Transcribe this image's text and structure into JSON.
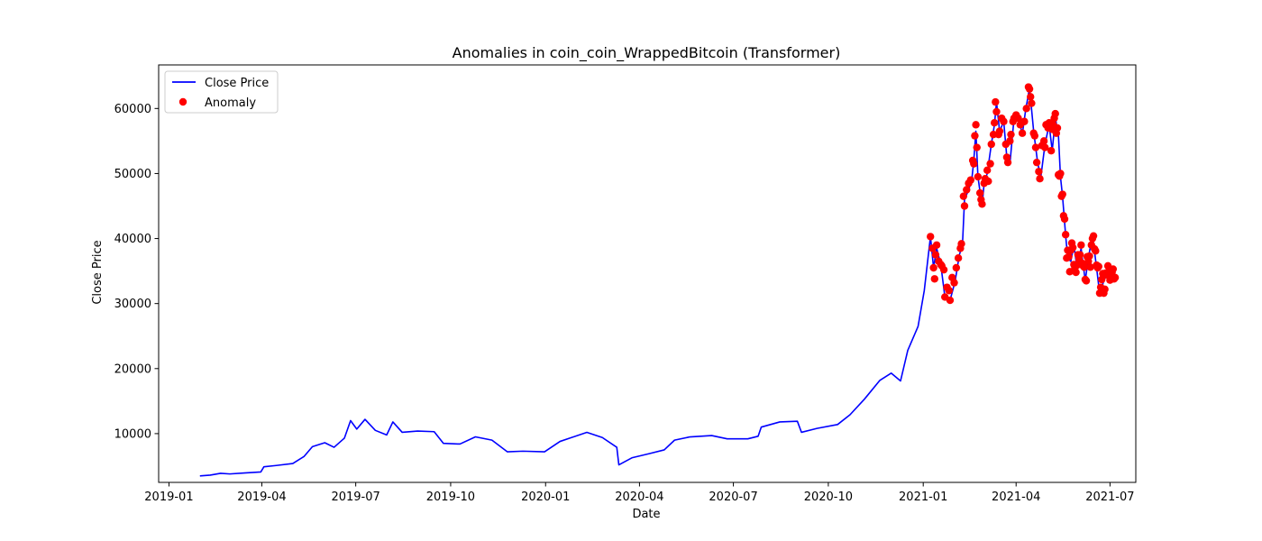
{
  "chart_data": {
    "type": "line",
    "title": "Anomalies in coin_coin_WrappedBitcoin (Transformer)",
    "xlabel": "Date",
    "ylabel": "Close Price",
    "xlim": [
      "2018-12-22",
      "2021-07-26"
    ],
    "ylim": [
      2500,
      66700
    ],
    "x_ticks": [
      "2019-01",
      "2019-04",
      "2019-07",
      "2019-10",
      "2020-01",
      "2020-04",
      "2020-07",
      "2020-10",
      "2021-01",
      "2021-04",
      "2021-07"
    ],
    "y_ticks": [
      10000,
      20000,
      30000,
      40000,
      50000,
      60000
    ],
    "grid": false,
    "legend_position": "top-left",
    "series": [
      {
        "name": "Close Price",
        "kind": "line",
        "color": "#0000ff",
        "points": [
          [
            "2019-01-31",
            3500
          ],
          [
            "2019-02-10",
            3620
          ],
          [
            "2019-02-20",
            3900
          ],
          [
            "2019-03-01",
            3800
          ],
          [
            "2019-03-15",
            3950
          ],
          [
            "2019-03-31",
            4100
          ],
          [
            "2019-04-03",
            4900
          ],
          [
            "2019-04-15",
            5100
          ],
          [
            "2019-05-01",
            5400
          ],
          [
            "2019-05-12",
            6500
          ],
          [
            "2019-05-20",
            8000
          ],
          [
            "2019-06-01",
            8600
          ],
          [
            "2019-06-10",
            7900
          ],
          [
            "2019-06-20",
            9300
          ],
          [
            "2019-06-26",
            12000
          ],
          [
            "2019-07-02",
            10700
          ],
          [
            "2019-07-10",
            12200
          ],
          [
            "2019-07-20",
            10500
          ],
          [
            "2019-07-31",
            9800
          ],
          [
            "2019-08-06",
            11800
          ],
          [
            "2019-08-15",
            10200
          ],
          [
            "2019-08-30",
            10400
          ],
          [
            "2019-09-15",
            10300
          ],
          [
            "2019-09-24",
            8500
          ],
          [
            "2019-10-10",
            8400
          ],
          [
            "2019-10-25",
            9500
          ],
          [
            "2019-11-10",
            9000
          ],
          [
            "2019-11-25",
            7200
          ],
          [
            "2019-12-10",
            7300
          ],
          [
            "2019-12-31",
            7200
          ],
          [
            "2020-01-15",
            8800
          ],
          [
            "2020-02-10",
            10200
          ],
          [
            "2020-02-25",
            9400
          ],
          [
            "2020-03-10",
            7900
          ],
          [
            "2020-03-12",
            5200
          ],
          [
            "2020-03-25",
            6300
          ],
          [
            "2020-04-10",
            6900
          ],
          [
            "2020-04-25",
            7500
          ],
          [
            "2020-05-05",
            9000
          ],
          [
            "2020-05-20",
            9500
          ],
          [
            "2020-06-10",
            9700
          ],
          [
            "2020-06-25",
            9200
          ],
          [
            "2020-07-15",
            9200
          ],
          [
            "2020-07-25",
            9600
          ],
          [
            "2020-07-28",
            11000
          ],
          [
            "2020-08-15",
            11800
          ],
          [
            "2020-09-01",
            11900
          ],
          [
            "2020-09-05",
            10200
          ],
          [
            "2020-09-20",
            10800
          ],
          [
            "2020-10-10",
            11400
          ],
          [
            "2020-10-22",
            12900
          ],
          [
            "2020-11-05",
            15300
          ],
          [
            "2020-11-20",
            18200
          ],
          [
            "2020-12-01",
            19300
          ],
          [
            "2020-12-10",
            18100
          ],
          [
            "2020-12-17",
            22800
          ],
          [
            "2020-12-27",
            26500
          ],
          [
            "2021-01-02",
            32000
          ],
          [
            "2021-01-08",
            40300
          ],
          [
            "2021-01-11",
            35500
          ],
          [
            "2021-01-14",
            38500
          ],
          [
            "2021-01-18",
            36000
          ],
          [
            "2021-01-22",
            31000
          ],
          [
            "2021-01-27",
            30500
          ],
          [
            "2021-02-01",
            33500
          ],
          [
            "2021-02-05",
            37500
          ],
          [
            "2021-02-08",
            39000
          ],
          [
            "2021-02-10",
            46000
          ],
          [
            "2021-02-14",
            47500
          ],
          [
            "2021-02-17",
            49000
          ],
          [
            "2021-02-19",
            52000
          ],
          [
            "2021-02-21",
            56500
          ],
          [
            "2021-02-23",
            49500
          ],
          [
            "2021-02-27",
            45000
          ],
          [
            "2021-03-01",
            48500
          ],
          [
            "2021-03-04",
            50000
          ],
          [
            "2021-03-08",
            54500
          ],
          [
            "2021-03-11",
            57500
          ],
          [
            "2021-03-13",
            61000
          ],
          [
            "2021-03-16",
            56500
          ],
          [
            "2021-03-20",
            58000
          ],
          [
            "2021-03-23",
            52500
          ],
          [
            "2021-03-26",
            51500
          ],
          [
            "2021-03-30",
            58500
          ],
          [
            "2021-04-03",
            59000
          ],
          [
            "2021-04-07",
            56000
          ],
          [
            "2021-04-10",
            59500
          ],
          [
            "2021-04-14",
            63200
          ],
          [
            "2021-04-18",
            56500
          ],
          [
            "2021-04-22",
            51500
          ],
          [
            "2021-04-25",
            49500
          ],
          [
            "2021-04-29",
            54500
          ],
          [
            "2021-05-03",
            57500
          ],
          [
            "2021-05-06",
            53500
          ],
          [
            "2021-05-09",
            58500
          ],
          [
            "2021-05-12",
            56000
          ],
          [
            "2021-05-14",
            49500
          ],
          [
            "2021-05-16",
            46500
          ],
          [
            "2021-05-19",
            40500
          ],
          [
            "2021-05-21",
            37000
          ],
          [
            "2021-05-24",
            36500
          ],
          [
            "2021-05-27",
            39000
          ],
          [
            "2021-05-30",
            35500
          ],
          [
            "2021-06-03",
            38500
          ],
          [
            "2021-06-07",
            33500
          ],
          [
            "2021-06-10",
            37000
          ],
          [
            "2021-06-14",
            40500
          ],
          [
            "2021-06-18",
            35500
          ],
          [
            "2021-06-21",
            31500
          ],
          [
            "2021-06-25",
            33500
          ],
          [
            "2021-06-28",
            34500
          ],
          [
            "2021-07-02",
            33500
          ],
          [
            "2021-07-06",
            34000
          ]
        ]
      },
      {
        "name": "Anomaly",
        "kind": "scatter",
        "color": "#ff0000",
        "points": [
          [
            "2021-01-08",
            40300
          ],
          [
            "2021-01-10",
            38500
          ],
          [
            "2021-01-11",
            35500
          ],
          [
            "2021-01-12",
            33800
          ],
          [
            "2021-01-13",
            37500
          ],
          [
            "2021-01-14",
            39000
          ],
          [
            "2021-01-16",
            36500
          ],
          [
            "2021-01-18",
            36000
          ],
          [
            "2021-01-19",
            35800
          ],
          [
            "2021-01-21",
            35200
          ],
          [
            "2021-01-22",
            31000
          ],
          [
            "2021-01-24",
            32500
          ],
          [
            "2021-01-26",
            32000
          ],
          [
            "2021-01-27",
            30500
          ],
          [
            "2021-01-29",
            34000
          ],
          [
            "2021-01-31",
            33200
          ],
          [
            "2021-02-02",
            35500
          ],
          [
            "2021-02-04",
            37000
          ],
          [
            "2021-02-06",
            38500
          ],
          [
            "2021-02-07",
            39200
          ],
          [
            "2021-02-09",
            46500
          ],
          [
            "2021-02-10",
            45000
          ],
          [
            "2021-02-12",
            47500
          ],
          [
            "2021-02-14",
            48500
          ],
          [
            "2021-02-16",
            49000
          ],
          [
            "2021-02-18",
            52000
          ],
          [
            "2021-02-19",
            51500
          ],
          [
            "2021-02-20",
            55800
          ],
          [
            "2021-02-21",
            57500
          ],
          [
            "2021-02-22",
            54000
          ],
          [
            "2021-02-23",
            49500
          ],
          [
            "2021-02-25",
            47000
          ],
          [
            "2021-02-26",
            46000
          ],
          [
            "2021-02-27",
            45300
          ],
          [
            "2021-03-01",
            48500
          ],
          [
            "2021-03-02",
            49200
          ],
          [
            "2021-03-04",
            50500
          ],
          [
            "2021-03-05",
            48800
          ],
          [
            "2021-03-07",
            51500
          ],
          [
            "2021-03-08",
            54500
          ],
          [
            "2021-03-10",
            56000
          ],
          [
            "2021-03-11",
            57800
          ],
          [
            "2021-03-12",
            61000
          ],
          [
            "2021-03-13",
            59500
          ],
          [
            "2021-03-15",
            56000
          ],
          [
            "2021-03-16",
            56500
          ],
          [
            "2021-03-18",
            58500
          ],
          [
            "2021-03-20",
            58000
          ],
          [
            "2021-03-22",
            54500
          ],
          [
            "2021-03-23",
            52500
          ],
          [
            "2021-03-24",
            51700
          ],
          [
            "2021-03-26",
            55000
          ],
          [
            "2021-03-27",
            56000
          ],
          [
            "2021-03-29",
            58000
          ],
          [
            "2021-03-30",
            58500
          ],
          [
            "2021-04-01",
            59000
          ],
          [
            "2021-04-03",
            58500
          ],
          [
            "2021-04-05",
            57500
          ],
          [
            "2021-04-07",
            56200
          ],
          [
            "2021-04-09",
            58000
          ],
          [
            "2021-04-11",
            60000
          ],
          [
            "2021-04-13",
            63300
          ],
          [
            "2021-04-14",
            63000
          ],
          [
            "2021-04-15",
            61800
          ],
          [
            "2021-04-16",
            60800
          ],
          [
            "2021-04-18",
            56200
          ],
          [
            "2021-04-19",
            55800
          ],
          [
            "2021-04-20",
            54000
          ],
          [
            "2021-04-21",
            51700
          ],
          [
            "2021-04-23",
            50300
          ],
          [
            "2021-04-24",
            49200
          ],
          [
            "2021-04-26",
            54300
          ],
          [
            "2021-04-28",
            55000
          ],
          [
            "2021-04-29",
            54000
          ],
          [
            "2021-04-30",
            57500
          ],
          [
            "2021-05-02",
            57000
          ],
          [
            "2021-05-03",
            57800
          ],
          [
            "2021-05-05",
            53500
          ],
          [
            "2021-05-06",
            56800
          ],
          [
            "2021-05-07",
            57500
          ],
          [
            "2021-05-08",
            58500
          ],
          [
            "2021-05-09",
            59200
          ],
          [
            "2021-05-10",
            56200
          ],
          [
            "2021-05-11",
            57000
          ],
          [
            "2021-05-12",
            49800
          ],
          [
            "2021-05-13",
            49600
          ],
          [
            "2021-05-14",
            50000
          ],
          [
            "2021-05-15",
            46500
          ],
          [
            "2021-05-16",
            46800
          ],
          [
            "2021-05-17",
            43500
          ],
          [
            "2021-05-18",
            43000
          ],
          [
            "2021-05-19",
            40600
          ],
          [
            "2021-05-20",
            37000
          ],
          [
            "2021-05-21",
            38200
          ],
          [
            "2021-05-22",
            37200
          ],
          [
            "2021-05-23",
            34900
          ],
          [
            "2021-05-24",
            38200
          ],
          [
            "2021-05-25",
            39300
          ],
          [
            "2021-05-26",
            38600
          ],
          [
            "2021-05-27",
            36000
          ],
          [
            "2021-05-28",
            35500
          ],
          [
            "2021-05-29",
            34800
          ],
          [
            "2021-05-30",
            35900
          ],
          [
            "2021-05-31",
            37500
          ],
          [
            "2021-06-01",
            36800
          ],
          [
            "2021-06-02",
            37500
          ],
          [
            "2021-06-03",
            39000
          ],
          [
            "2021-06-04",
            36200
          ],
          [
            "2021-06-05",
            35800
          ],
          [
            "2021-06-06",
            35600
          ],
          [
            "2021-06-07",
            33700
          ],
          [
            "2021-06-08",
            33500
          ],
          [
            "2021-06-09",
            37200
          ],
          [
            "2021-06-10",
            36500
          ],
          [
            "2021-06-11",
            37300
          ],
          [
            "2021-06-12",
            35600
          ],
          [
            "2021-06-13",
            39000
          ],
          [
            "2021-06-14",
            40000
          ],
          [
            "2021-06-15",
            40400
          ],
          [
            "2021-06-16",
            38400
          ],
          [
            "2021-06-17",
            38100
          ],
          [
            "2021-06-18",
            35900
          ],
          [
            "2021-06-19",
            35500
          ],
          [
            "2021-06-20",
            35700
          ],
          [
            "2021-06-21",
            31600
          ],
          [
            "2021-06-22",
            32500
          ],
          [
            "2021-06-23",
            33700
          ],
          [
            "2021-06-24",
            34600
          ],
          [
            "2021-06-25",
            31600
          ],
          [
            "2021-06-26",
            32200
          ],
          [
            "2021-06-27",
            34700
          ],
          [
            "2021-06-28",
            34400
          ],
          [
            "2021-06-29",
            35800
          ],
          [
            "2021-06-30",
            35000
          ],
          [
            "2021-07-01",
            33600
          ],
          [
            "2021-07-02",
            33800
          ],
          [
            "2021-07-03",
            34800
          ],
          [
            "2021-07-04",
            35300
          ],
          [
            "2021-07-05",
            33800
          ],
          [
            "2021-07-06",
            34000
          ]
        ]
      }
    ]
  }
}
